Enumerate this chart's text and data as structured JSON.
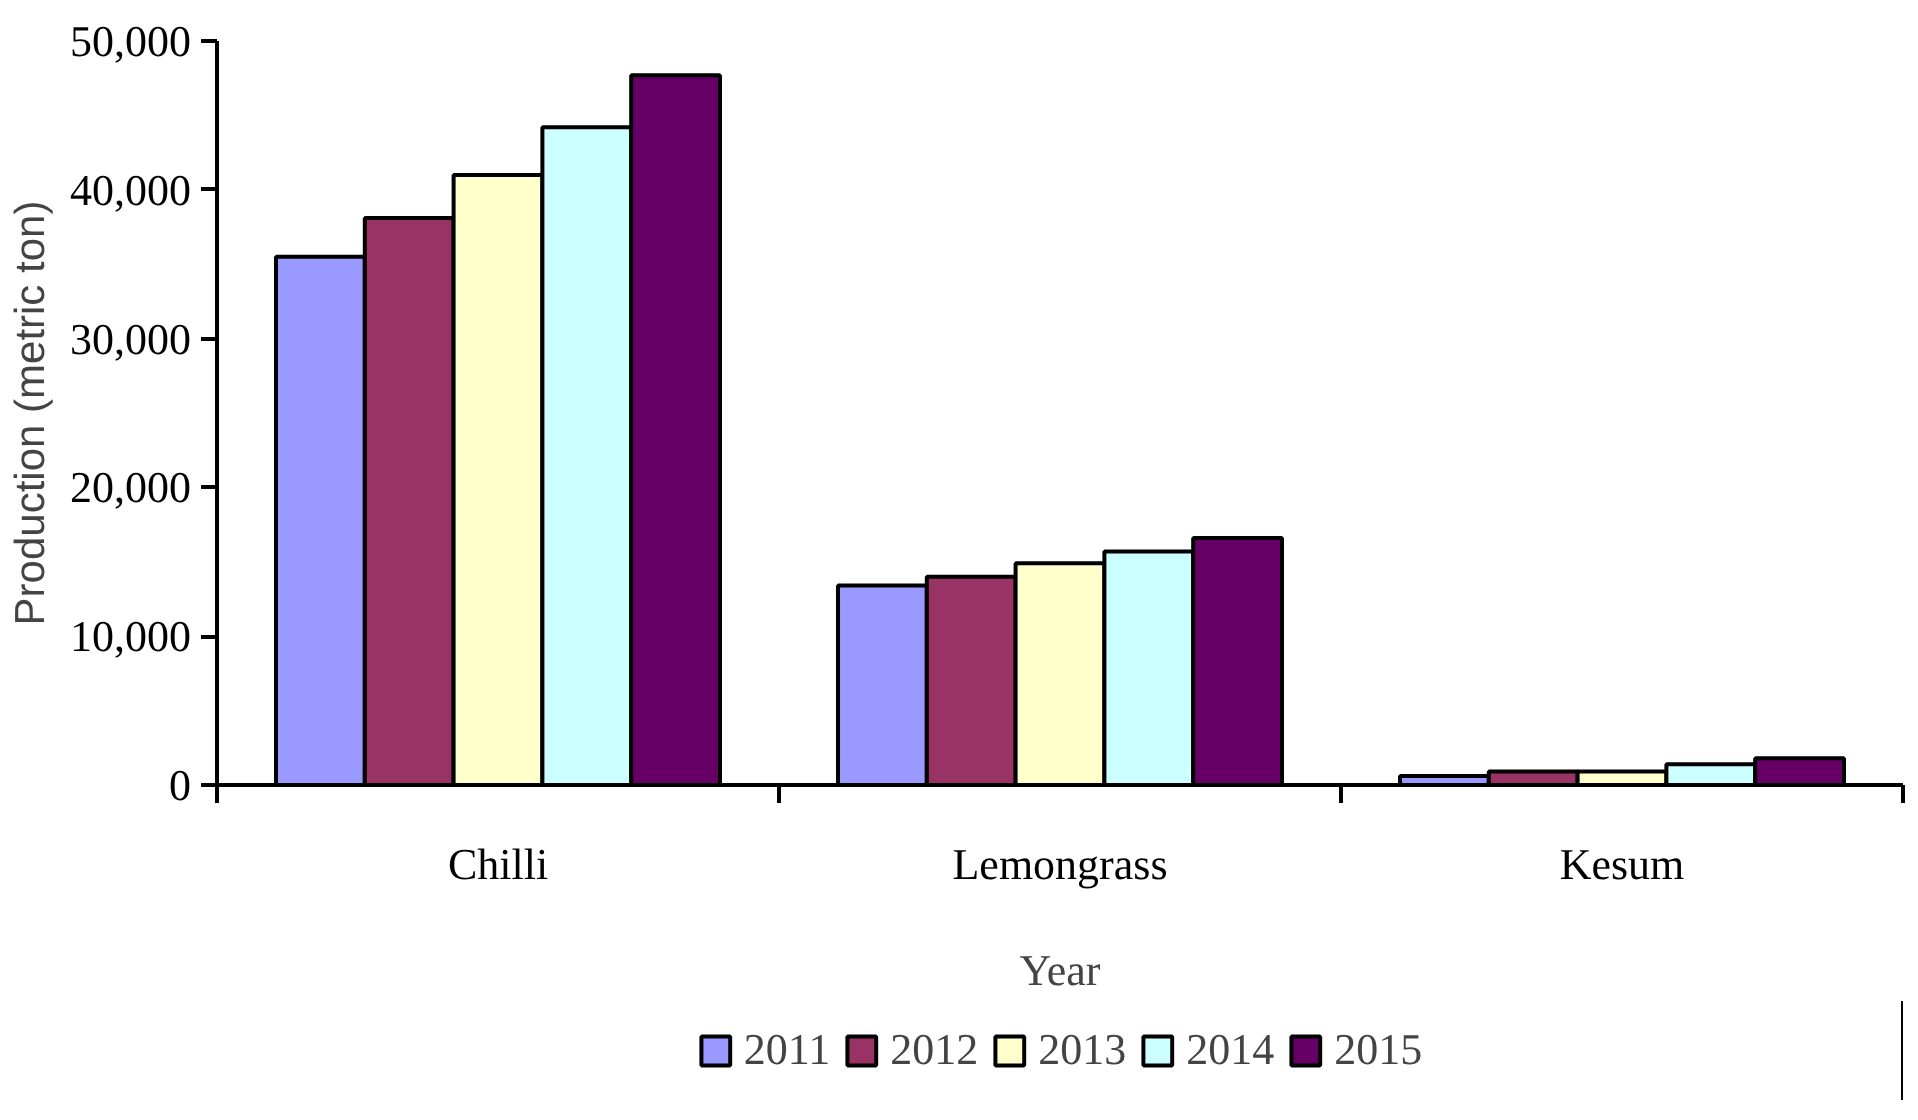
{
  "chart_data": {
    "type": "bar",
    "xlabel": "Year",
    "ylabel": "Production (metric ton)",
    "categories": [
      "Chilli",
      "Lemongrass",
      "Kesum"
    ],
    "series": [
      {
        "name": "2011",
        "color": "#9999ff",
        "values": [
          35500,
          13400,
          600
        ]
      },
      {
        "name": "2012",
        "color": "#993366",
        "values": [
          38100,
          14000,
          900
        ]
      },
      {
        "name": "2013",
        "color": "#ffffcc",
        "values": [
          41000,
          14900,
          900
        ]
      },
      {
        "name": "2014",
        "color": "#ccffff",
        "values": [
          44200,
          15700,
          1400
        ]
      },
      {
        "name": "2015",
        "color": "#660066",
        "values": [
          47700,
          16600,
          1800
        ]
      }
    ],
    "ylim": [
      0,
      50000
    ],
    "yticks": [
      {
        "value": 0,
        "label": "0"
      },
      {
        "value": 10000,
        "label": "10,000"
      },
      {
        "value": 20000,
        "label": "20,000"
      },
      {
        "value": 30000,
        "label": "30,000"
      },
      {
        "value": 40000,
        "label": "40,000"
      },
      {
        "value": 50000,
        "label": "50,000"
      }
    ],
    "grid": false,
    "legend": "bottom"
  }
}
